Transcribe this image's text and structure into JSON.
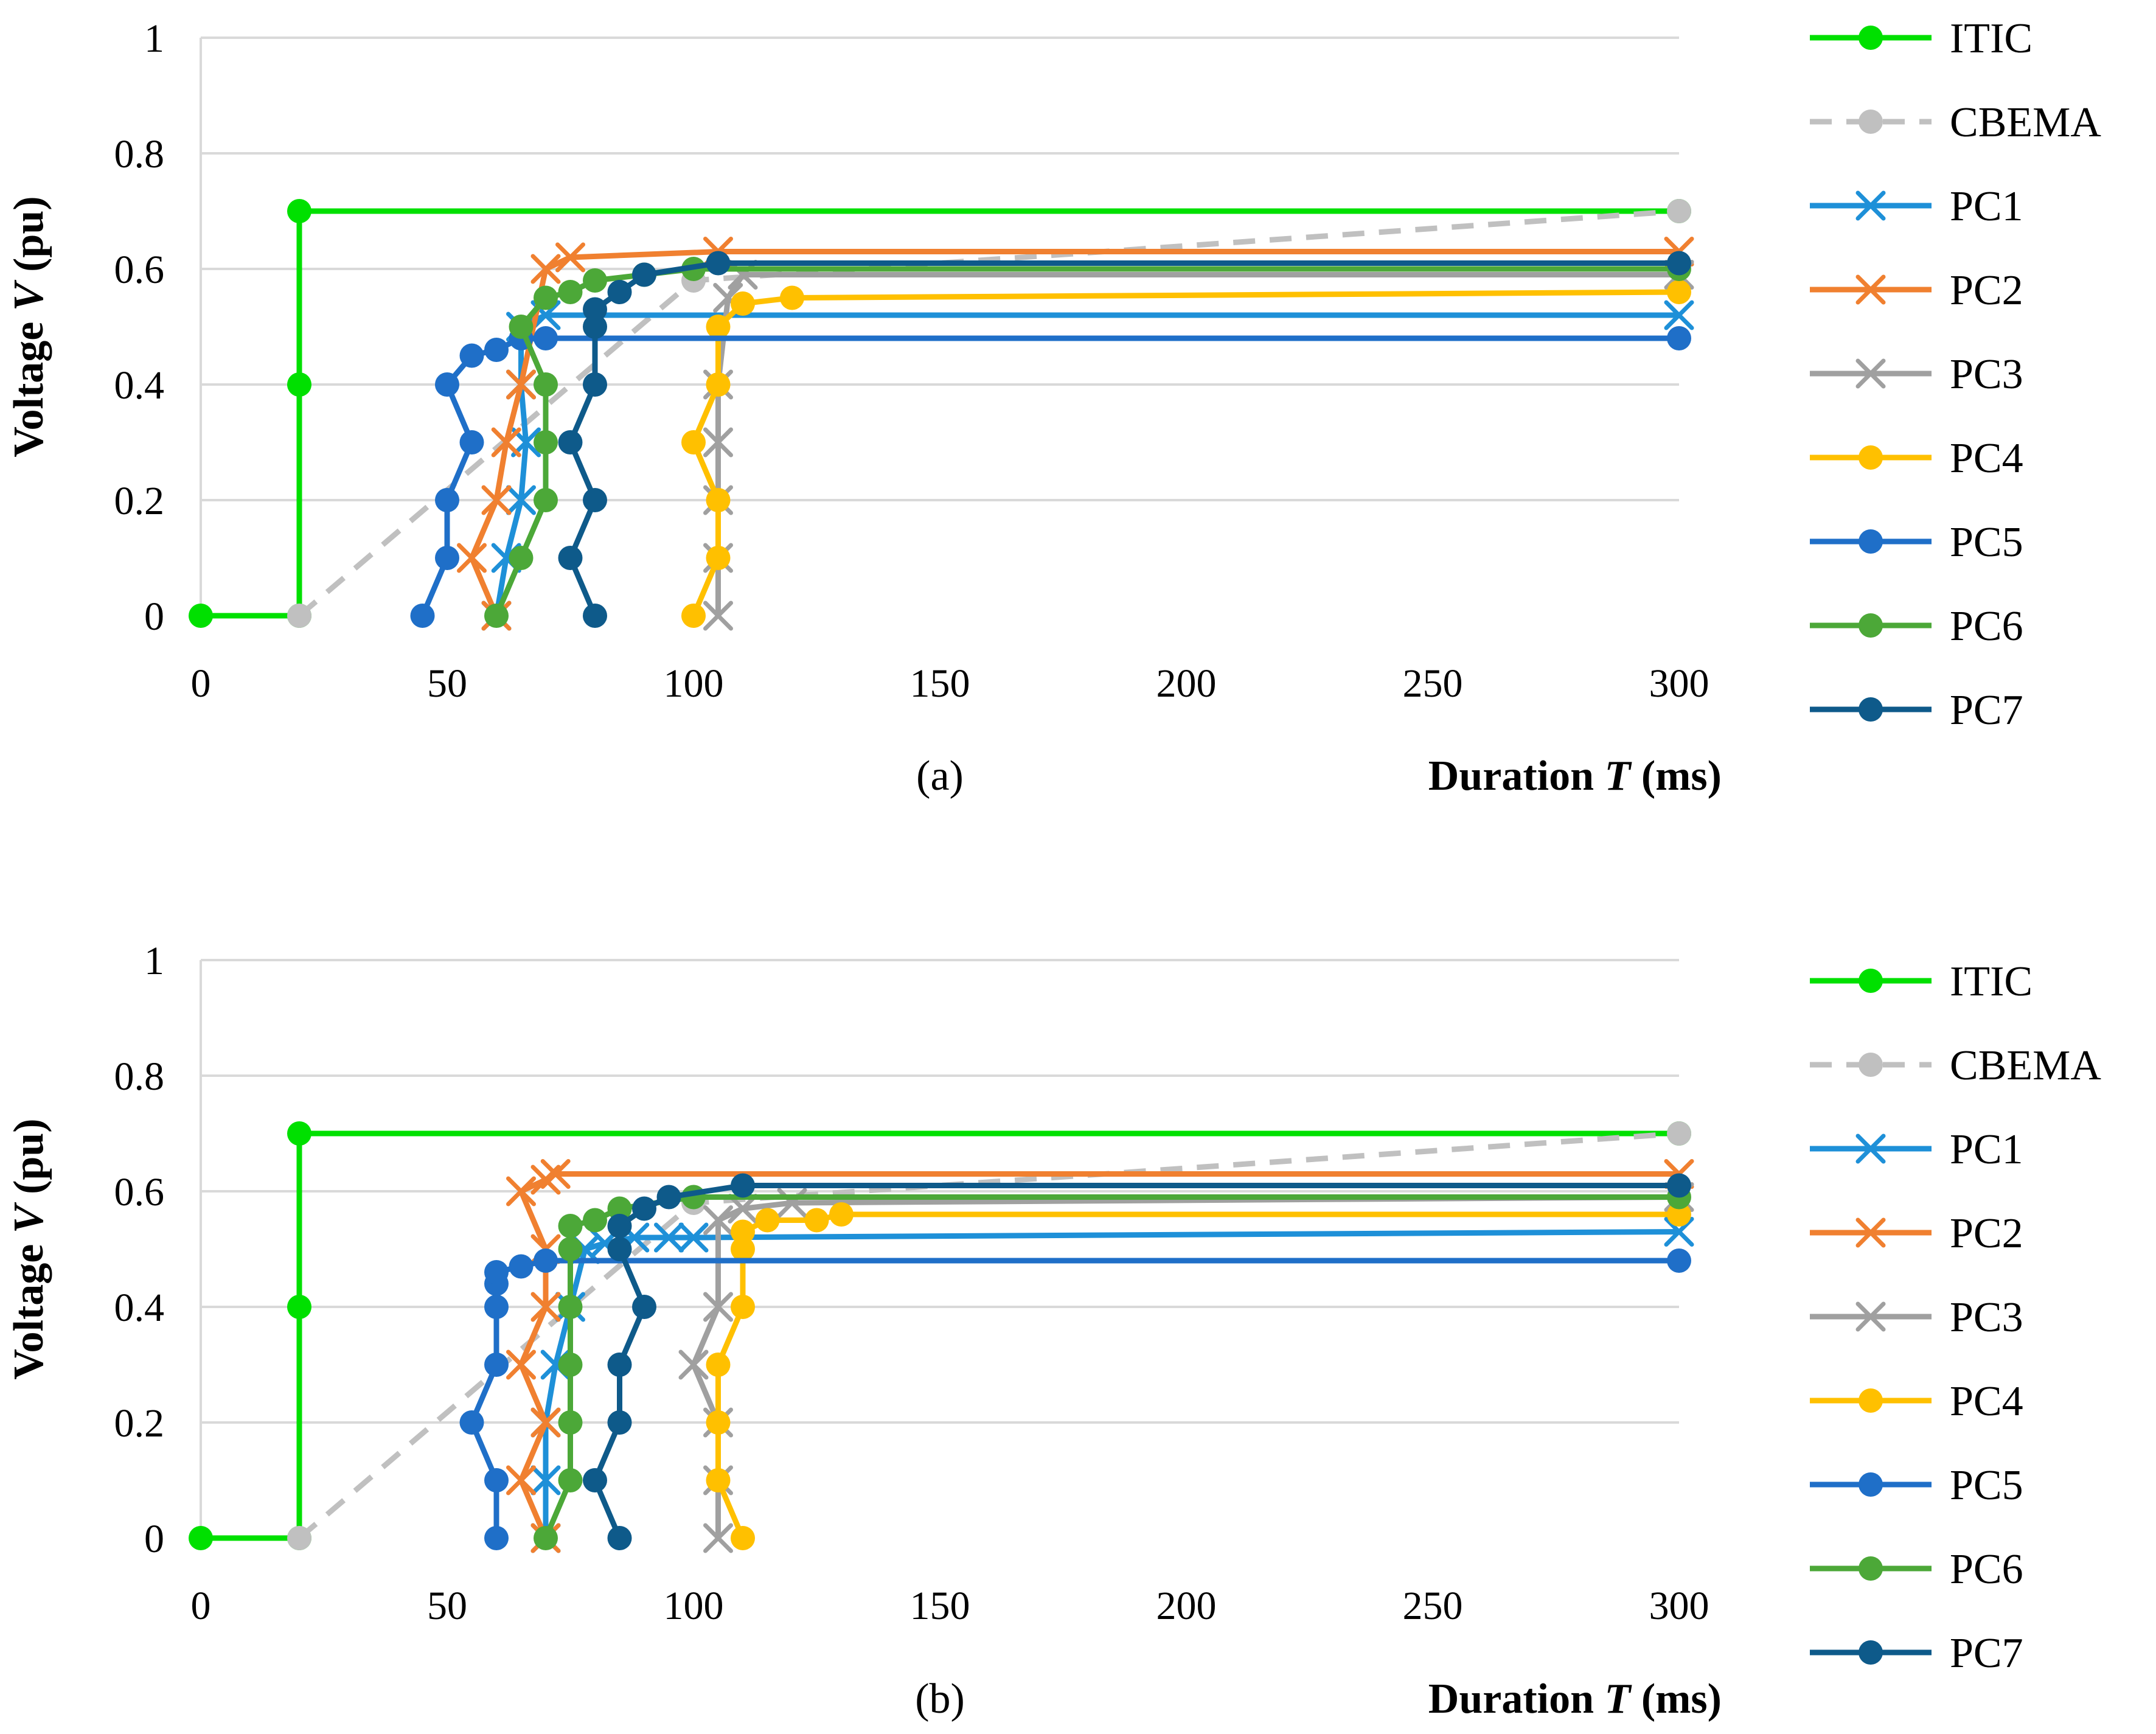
{
  "chart_data": [
    {
      "type": "line",
      "panel_label": "(a)",
      "xlabel_prefix": "Duration ",
      "xlabel_var": "T",
      "xlabel_suffix": " (ms)",
      "ylabel_prefix": "Voltage ",
      "ylabel_var": "V",
      "ylabel_suffix": " (pu)",
      "x_axis_breaks": [
        {
          "from": 0,
          "to": 150,
          "fraction": 0.5
        },
        {
          "from": 150,
          "to": 300,
          "fraction": 0.5
        }
      ],
      "xlim": [
        0,
        300
      ],
      "ylim": [
        0,
        1
      ],
      "xticks": [
        0,
        50,
        100,
        150,
        200,
        250,
        300
      ],
      "xtick_labels": [
        "0",
        "50",
        "100",
        "150",
        "200",
        "250",
        "300"
      ],
      "yticks": [
        0,
        0.2,
        0.4,
        0.6,
        0.8,
        1
      ],
      "ytick_labels": [
        "0",
        "0.2",
        "0.4",
        "0.6",
        "0.8",
        "1"
      ],
      "grid": "horizontal",
      "legend": "right",
      "series": [
        {
          "name": "ITIC",
          "color": "#00e000",
          "marker": "circle",
          "dash": false,
          "x": [
            0,
            20,
            20,
            20,
            300
          ],
          "y": [
            0,
            0,
            0.4,
            0.7,
            0.7
          ]
        },
        {
          "name": "CBEMA",
          "color": "#c0c0c0",
          "marker": "circle",
          "dash": true,
          "x": [
            20,
            100,
            300
          ],
          "y": [
            0,
            0.58,
            0.7
          ]
        },
        {
          "name": "PC1",
          "color": "#1e90d8",
          "marker": "x",
          "dash": false,
          "x": [
            60,
            62,
            65,
            66,
            65,
            65,
            70,
            300
          ],
          "y": [
            0,
            0.1,
            0.2,
            0.3,
            0.4,
            0.5,
            0.52,
            0.52
          ]
        },
        {
          "name": "PC2",
          "color": "#f08030",
          "marker": "x",
          "dash": false,
          "x": [
            60,
            55,
            60,
            62,
            65,
            70,
            75,
            105,
            300
          ],
          "y": [
            0,
            0.1,
            0.2,
            0.3,
            0.4,
            0.6,
            0.62,
            0.63,
            0.63
          ]
        },
        {
          "name": "PC3",
          "color": "#a0a0a0",
          "marker": "x",
          "dash": false,
          "x": [
            105,
            105,
            105,
            105,
            105,
            107,
            110,
            300
          ],
          "y": [
            0,
            0.1,
            0.2,
            0.3,
            0.4,
            0.55,
            0.59,
            0.59
          ]
        },
        {
          "name": "PC4",
          "color": "#ffc000",
          "marker": "circle",
          "dash": false,
          "x": [
            100,
            105,
            105,
            100,
            105,
            105,
            110,
            120,
            300
          ],
          "y": [
            0,
            0.1,
            0.2,
            0.3,
            0.4,
            0.5,
            0.54,
            0.55,
            0.56
          ]
        },
        {
          "name": "PC5",
          "color": "#1f6fc8",
          "marker": "circle",
          "dash": false,
          "x": [
            45,
            50,
            50,
            55,
            50,
            55,
            60,
            65,
            70,
            300
          ],
          "y": [
            0,
            0.1,
            0.2,
            0.3,
            0.4,
            0.45,
            0.46,
            0.48,
            0.48,
            0.48
          ]
        },
        {
          "name": "PC6",
          "color": "#4ca838",
          "marker": "circle",
          "dash": false,
          "x": [
            60,
            65,
            70,
            70,
            70,
            65,
            70,
            75,
            80,
            90,
            100,
            300
          ],
          "y": [
            0,
            0.1,
            0.2,
            0.3,
            0.4,
            0.5,
            0.55,
            0.56,
            0.58,
            0.59,
            0.6,
            0.6
          ]
        },
        {
          "name": "PC7",
          "color": "#0e5a8a",
          "marker": "circle",
          "dash": false,
          "x": [
            80,
            75,
            80,
            75,
            80,
            80,
            80,
            85,
            90,
            105,
            300
          ],
          "y": [
            0,
            0.1,
            0.2,
            0.3,
            0.4,
            0.5,
            0.53,
            0.56,
            0.59,
            0.61,
            0.61
          ]
        }
      ]
    },
    {
      "type": "line",
      "panel_label": "(b)",
      "xlabel_prefix": "Duration ",
      "xlabel_var": "T",
      "xlabel_suffix": " (ms)",
      "ylabel_prefix": "Voltage  ",
      "ylabel_var": "V",
      "ylabel_suffix": " (pu)",
      "x_axis_breaks": [
        {
          "from": 0,
          "to": 150,
          "fraction": 0.5
        },
        {
          "from": 150,
          "to": 300,
          "fraction": 0.5
        }
      ],
      "xlim": [
        0,
        300
      ],
      "ylim": [
        0,
        1
      ],
      "xticks": [
        0,
        50,
        100,
        150,
        200,
        250,
        300
      ],
      "xtick_labels": [
        "0",
        "50",
        "100",
        "150",
        "200",
        "250",
        "300"
      ],
      "yticks": [
        0,
        0.2,
        0.4,
        0.6,
        0.8,
        1
      ],
      "ytick_labels": [
        "0",
        "0.2",
        "0.4",
        "0.6",
        "0.8",
        "1"
      ],
      "grid": "horizontal",
      "legend": "right",
      "series": [
        {
          "name": "ITIC",
          "color": "#00e000",
          "marker": "circle",
          "dash": false,
          "x": [
            0,
            20,
            20,
            20,
            300
          ],
          "y": [
            0,
            0,
            0.4,
            0.7,
            0.7
          ]
        },
        {
          "name": "CBEMA",
          "color": "#c0c0c0",
          "marker": "circle",
          "dash": true,
          "x": [
            20,
            100,
            300
          ],
          "y": [
            0,
            0.58,
            0.7
          ]
        },
        {
          "name": "PC1",
          "color": "#1e90d8",
          "marker": "x",
          "dash": false,
          "x": [
            70,
            70,
            70,
            72,
            75,
            78,
            82,
            88,
            95,
            100,
            300
          ],
          "y": [
            0,
            0.1,
            0.2,
            0.3,
            0.4,
            0.5,
            0.51,
            0.52,
            0.52,
            0.52,
            0.53
          ]
        },
        {
          "name": "PC2",
          "color": "#f08030",
          "marker": "x",
          "dash": false,
          "x": [
            70,
            65,
            70,
            65,
            70,
            70,
            65,
            70,
            72,
            300
          ],
          "y": [
            0,
            0.1,
            0.2,
            0.3,
            0.4,
            0.5,
            0.6,
            0.62,
            0.63,
            0.63
          ]
        },
        {
          "name": "PC3",
          "color": "#a0a0a0",
          "marker": "x",
          "dash": false,
          "x": [
            105,
            105,
            105,
            100,
            105,
            105,
            110,
            120,
            300
          ],
          "y": [
            0,
            0.1,
            0.2,
            0.3,
            0.4,
            0.55,
            0.57,
            0.58,
            0.59
          ]
        },
        {
          "name": "PC4",
          "color": "#ffc000",
          "marker": "circle",
          "dash": false,
          "x": [
            110,
            105,
            105,
            105,
            110,
            110,
            110,
            115,
            125,
            130,
            300
          ],
          "y": [
            0,
            0.1,
            0.2,
            0.3,
            0.4,
            0.5,
            0.53,
            0.55,
            0.55,
            0.56,
            0.56
          ]
        },
        {
          "name": "PC5",
          "color": "#1f6fc8",
          "marker": "circle",
          "dash": false,
          "x": [
            60,
            60,
            55,
            60,
            60,
            60,
            60,
            65,
            70,
            300
          ],
          "y": [
            0,
            0.1,
            0.2,
            0.3,
            0.4,
            0.44,
            0.46,
            0.47,
            0.48,
            0.48
          ]
        },
        {
          "name": "PC6",
          "color": "#4ca838",
          "marker": "circle",
          "dash": false,
          "x": [
            70,
            75,
            75,
            75,
            75,
            75,
            75,
            80,
            85,
            100,
            300
          ],
          "y": [
            0,
            0.1,
            0.2,
            0.3,
            0.4,
            0.5,
            0.54,
            0.55,
            0.57,
            0.59,
            0.59
          ]
        },
        {
          "name": "PC7",
          "color": "#0e5a8a",
          "marker": "circle",
          "dash": false,
          "x": [
            85,
            80,
            85,
            85,
            90,
            85,
            85,
            90,
            95,
            110,
            300
          ],
          "y": [
            0,
            0.1,
            0.2,
            0.3,
            0.4,
            0.5,
            0.54,
            0.57,
            0.59,
            0.61,
            0.61
          ]
        }
      ]
    }
  ]
}
